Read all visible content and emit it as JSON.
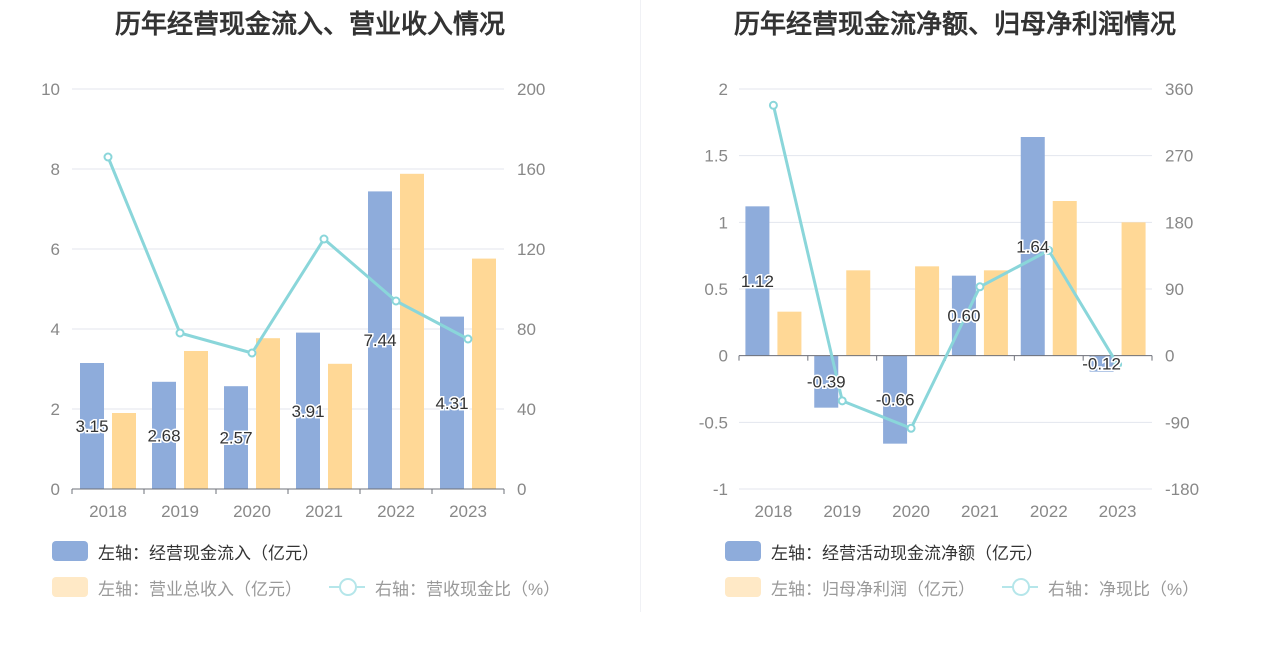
{
  "chart_data": [
    {
      "type": "bar",
      "title": "历年经营现金流入、营业收入情况",
      "categories": [
        "2018",
        "2019",
        "2020",
        "2021",
        "2022",
        "2023"
      ],
      "left_axis": {
        "ylim": [
          0,
          10
        ],
        "ticks": [
          "0",
          "2",
          "4",
          "6",
          "8",
          "10"
        ]
      },
      "right_axis": {
        "ylim": [
          0,
          200
        ],
        "ticks": [
          "0",
          "40",
          "80",
          "120",
          "160",
          "200"
        ]
      },
      "series": [
        {
          "name": "左轴：经营现金流入（亿元）",
          "axis": "left",
          "kind": "bar",
          "color": "#8eacdb",
          "values": [
            3.15,
            2.68,
            2.57,
            3.91,
            7.44,
            4.31
          ],
          "labels": [
            "3.15",
            "2.68",
            "2.57",
            "3.91",
            "7.44",
            "4.31"
          ]
        },
        {
          "name": "左轴：营业总收入（亿元）",
          "axis": "left",
          "kind": "bar",
          "color": "#ffd896",
          "values": [
            1.9,
            3.45,
            3.77,
            3.13,
            7.88,
            5.76
          ]
        },
        {
          "name": "右轴：营收现金比（%）",
          "axis": "right",
          "kind": "line",
          "color": "#8ad6da",
          "values": [
            166,
            78,
            68,
            125,
            94,
            75
          ]
        }
      ],
      "grid": true
    },
    {
      "type": "bar",
      "title": "历年经营现金流净额、归母净利润情况",
      "categories": [
        "2018",
        "2019",
        "2020",
        "2021",
        "2022",
        "2023"
      ],
      "left_axis": {
        "ylim": [
          -1,
          2
        ],
        "ticks": [
          "-1",
          "-0.5",
          "0",
          "0.5",
          "1",
          "1.5",
          "2"
        ]
      },
      "right_axis": {
        "ylim": [
          -180,
          360
        ],
        "ticks": [
          "-180",
          "-90",
          "0",
          "90",
          "180",
          "270",
          "360"
        ]
      },
      "series": [
        {
          "name": "左轴：经营活动现金流净额（亿元）",
          "axis": "left",
          "kind": "bar",
          "color": "#8eacdb",
          "values": [
            1.12,
            -0.39,
            -0.66,
            0.6,
            1.64,
            -0.12
          ],
          "labels": [
            "1.12",
            "-0.39",
            "-0.66",
            "0.60",
            "1.64",
            "-0.12"
          ]
        },
        {
          "name": "左轴：归母净利润（亿元）",
          "axis": "left",
          "kind": "bar",
          "color": "#ffd896",
          "values": [
            0.33,
            0.64,
            0.67,
            0.64,
            1.16,
            1.0
          ]
        },
        {
          "name": "右轴：净现比（%）",
          "axis": "right",
          "kind": "line",
          "color": "#8ad6da",
          "values": [
            338,
            -61,
            -98,
            93,
            142,
            -12
          ]
        }
      ],
      "grid": true
    }
  ]
}
